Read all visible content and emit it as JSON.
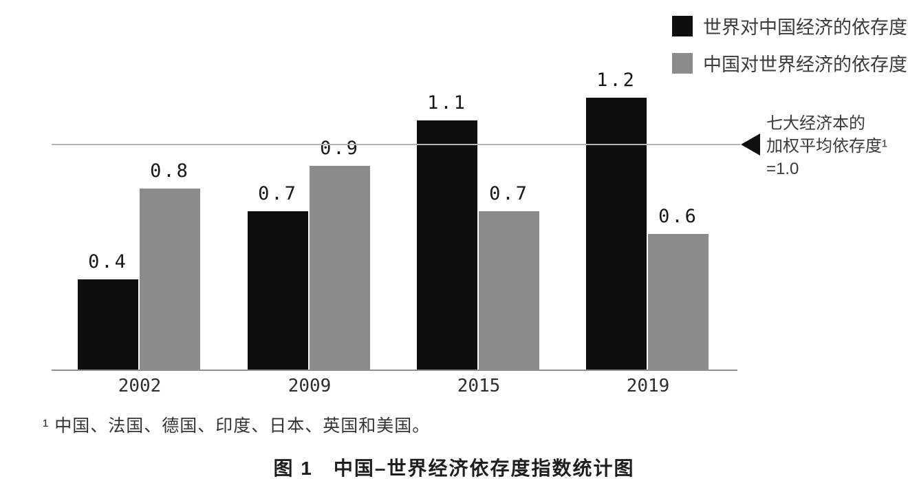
{
  "chart_data": {
    "type": "bar",
    "categories": [
      "2002",
      "2009",
      "2015",
      "2019"
    ],
    "series": [
      {
        "key": "world-on-china",
        "name": "世界对中国经济的依存度",
        "color": "#0e0e0e",
        "values": [
          0.4,
          0.7,
          1.1,
          1.2
        ]
      },
      {
        "key": "china-on-world",
        "name": "中国对世界经济的依存度",
        "color": "#8b8b8b",
        "values": [
          0.8,
          0.9,
          0.7,
          0.6
        ]
      }
    ],
    "ylim": [
      0,
      1.3
    ],
    "grid": false,
    "legend_position": "top-right",
    "reference_line": {
      "value": 1.0,
      "label": "七大经济本的加权平均依存度¹=1.0"
    },
    "title": "图 1　中国–世界经济依存度指数统计图",
    "xlabel": "",
    "ylabel": ""
  },
  "annotation": {
    "lines": [
      "七大经济本的",
      "加权平均依存度¹",
      "=1.0"
    ]
  },
  "footnote": {
    "text": "¹ 中国、法国、德国、印度、日本、英国和美国。"
  },
  "caption": {
    "text": "图 1　中国–世界经济依存度指数统计图"
  },
  "colors": {
    "bar_black": "#0e0e0e",
    "bar_gray": "#8b8b8b",
    "axis_line": "#8f8f8f",
    "reference_line": "#b4b4b4"
  }
}
